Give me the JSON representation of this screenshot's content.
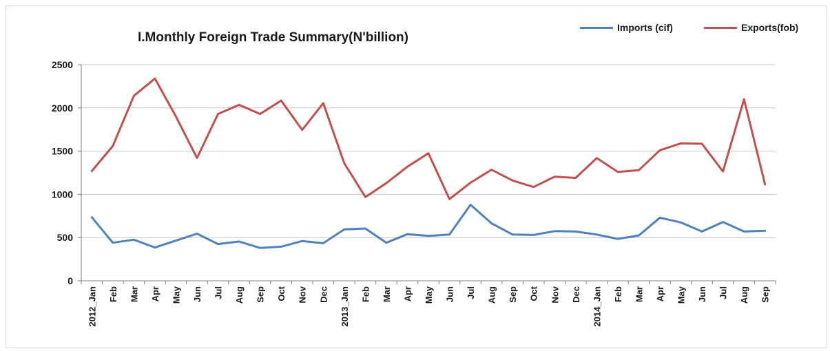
{
  "chart_data": {
    "type": "line",
    "title": "I.Monthly Foreign Trade Summary(N'billion)",
    "xlabel": "",
    "ylabel": "",
    "ylim": [
      0,
      2500
    ],
    "yticks": [
      "0",
      "500",
      "1000",
      "1500",
      "2000",
      "2500"
    ],
    "grid": "horizontal",
    "legend_position": "top-right",
    "categories": [
      "2012_Jan",
      "Feb",
      "Mar",
      "Apr",
      "May",
      "Jun",
      "Jul",
      "Aug",
      "Sep",
      "Oct",
      "Nov",
      "Dec",
      "2013_Jan",
      "Feb",
      "Mar",
      "Apr",
      "May",
      "Jun",
      "Jul",
      "Aug",
      "Sep",
      "Oct",
      "Nov",
      "Dec",
      "2014_Jan",
      "Feb",
      "Mar",
      "Apr",
      "May",
      "Jun",
      "Jul",
      "Aug",
      "Sep"
    ],
    "series": [
      {
        "name": "Imports (cif)",
        "color": "#4f81bd",
        "values": [
          735,
          440,
          475,
          385,
          465,
          545,
          425,
          455,
          380,
          395,
          460,
          435,
          595,
          605,
          440,
          540,
          520,
          535,
          880,
          665,
          535,
          530,
          575,
          570,
          535,
          485,
          525,
          730,
          675,
          570,
          680,
          570,
          580
        ]
      },
      {
        "name": "Exports(fob)",
        "color": "#c0504d",
        "values": [
          1270,
          1560,
          2140,
          2340,
          1900,
          1420,
          1930,
          2035,
          1930,
          2085,
          1745,
          2055,
          1360,
          970,
          1130,
          1320,
          1475,
          945,
          1135,
          1285,
          1160,
          1085,
          1205,
          1190,
          1420,
          1260,
          1280,
          1510,
          1590,
          1585,
          1265,
          2100,
          1115
        ]
      }
    ]
  }
}
